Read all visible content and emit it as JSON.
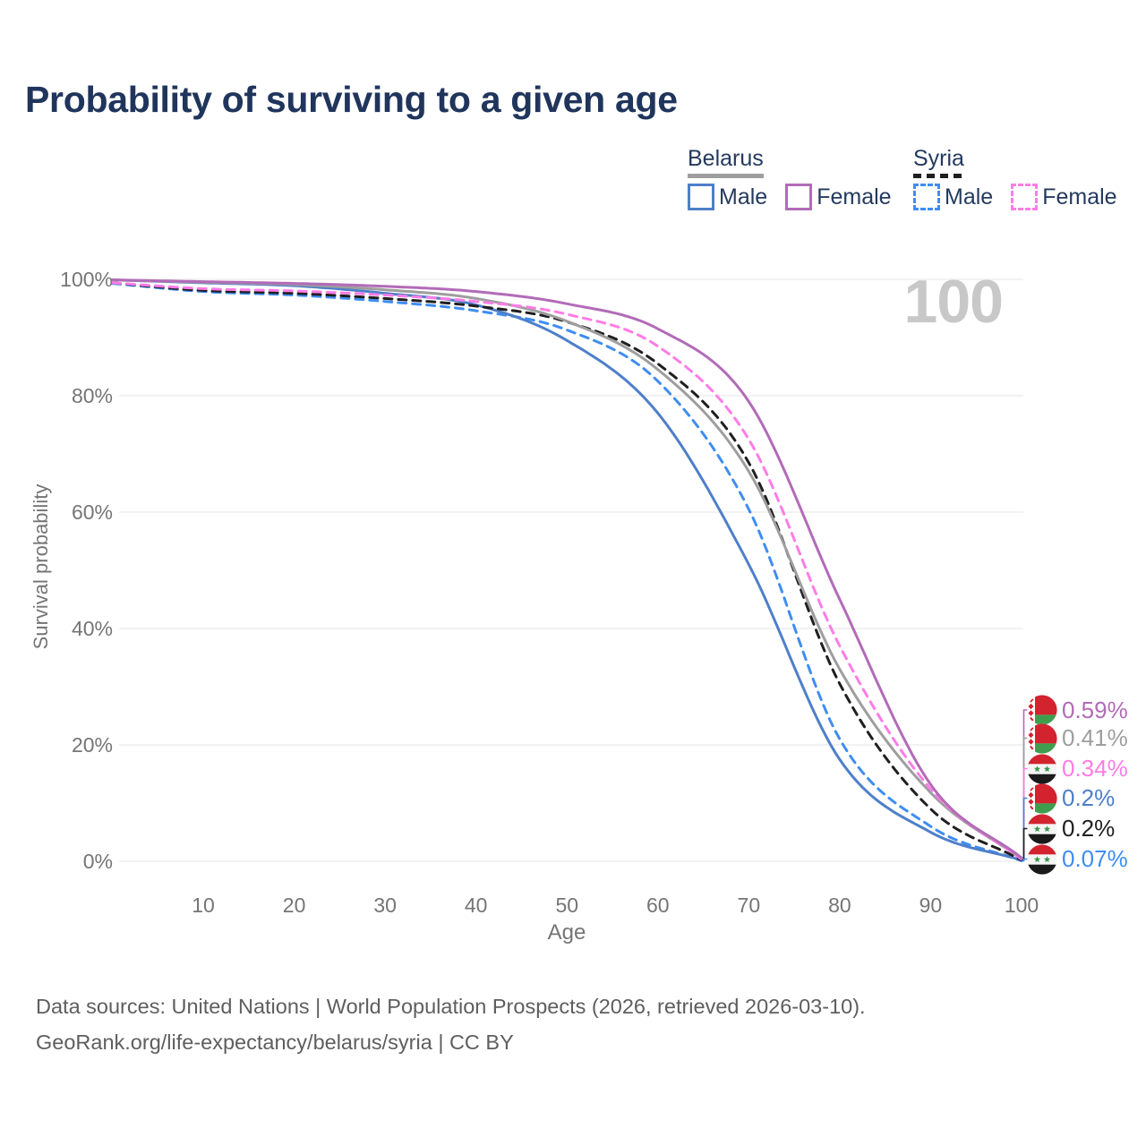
{
  "title": "Probability of surviving to a given age",
  "legend": {
    "belarus": {
      "title": "Belarus",
      "male": "Male",
      "female": "Female"
    },
    "syria": {
      "title": "Syria",
      "male": "Male",
      "female": "Female"
    }
  },
  "chart_data": {
    "type": "line",
    "title": "Probability of surviving to a given age",
    "xlabel": "Age",
    "ylabel": "Survival probability",
    "xlim": [
      0,
      100
    ],
    "ylim": [
      0,
      100
    ],
    "grid": "horizontal",
    "xticks": [
      10,
      20,
      30,
      40,
      50,
      60,
      70,
      80,
      90,
      100
    ],
    "yticks": [
      "0%",
      "20%",
      "40%",
      "60%",
      "80%",
      "100%"
    ],
    "age_annotation": "100",
    "x": [
      0,
      10,
      20,
      30,
      40,
      50,
      60,
      70,
      80,
      90,
      100
    ],
    "series": [
      {
        "id": "syria-male",
        "country": "Syria",
        "sex": "Male",
        "line": "dashed",
        "color": "#3f8df2",
        "values": [
          99.3,
          97.9,
          97.3,
          96.2,
          94.6,
          91.3,
          82.5,
          60.5,
          21.0,
          6.0,
          0.07
        ]
      },
      {
        "id": "belarus-male",
        "country": "Belarus",
        "sex": "Male",
        "line": "solid",
        "color": "#4e7fc9",
        "values": [
          99.9,
          99.4,
          98.9,
          97.6,
          95.6,
          89.5,
          77.0,
          51.0,
          17.5,
          5.0,
          0.2
        ]
      },
      {
        "id": "syria-all",
        "country": "Syria",
        "sex": "Both sexes",
        "line": "dashed",
        "color": "#1f1f1f",
        "values": [
          99.4,
          98.1,
          97.6,
          96.7,
          95.4,
          92.7,
          85.5,
          68.5,
          30.5,
          9.0,
          0.2
        ]
      },
      {
        "id": "belarus-all",
        "country": "Belarus",
        "sex": "Both sexes",
        "line": "solid",
        "color": "#9e9e9e",
        "values": [
          99.9,
          99.5,
          99.1,
          98.2,
          96.7,
          92.8,
          84.5,
          67.0,
          33.0,
          11.8,
          0.41
        ]
      },
      {
        "id": "syria-female",
        "country": "Syria",
        "sex": "Female",
        "line": "dashed",
        "color": "#ff7ce7",
        "values": [
          99.4,
          98.4,
          98.0,
          97.3,
          96.2,
          94.0,
          88.5,
          72.5,
          37.0,
          12.4,
          0.34
        ]
      },
      {
        "id": "belarus-female",
        "country": "Belarus",
        "sex": "Female",
        "line": "solid",
        "color": "#b26bb8",
        "values": [
          99.9,
          99.6,
          99.3,
          98.8,
          97.9,
          95.8,
          91.5,
          79.0,
          45.0,
          13.2,
          0.59
        ]
      }
    ],
    "end_labels": [
      {
        "series": "belarus-female",
        "flag": "belarus",
        "text": "0.59%"
      },
      {
        "series": "belarus-all",
        "flag": "belarus",
        "text": "0.41%"
      },
      {
        "series": "syria-female",
        "flag": "syria",
        "text": "0.34%"
      },
      {
        "series": "belarus-male",
        "flag": "belarus",
        "text": "0.2%"
      },
      {
        "series": "syria-all",
        "flag": "syria",
        "text": "0.2%"
      },
      {
        "series": "syria-male",
        "flag": "syria",
        "text": "0.07%"
      }
    ]
  },
  "footer": {
    "line1": "Data sources: United Nations | World Population Prospects (2026, retrieved 2026-03-10).",
    "line2": "GeoRank.org/life-expectancy/belarus/syria | CC BY"
  },
  "colors": {
    "title_text": "#20355c",
    "axis_text": "#757575",
    "gridline": "#e9e9e9",
    "watermark": "#c8c8c8",
    "footer_text": "#5e5e5e"
  }
}
